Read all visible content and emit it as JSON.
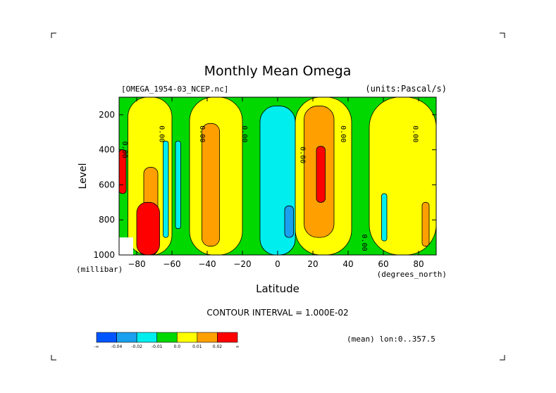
{
  "chart_data": {
    "type": "heatmap",
    "title": "Monthly Mean Omega",
    "file_label": "[OMEGA_1954-03_NCEP.nc]",
    "units_label": "(units:Pascal/s)",
    "xlabel": "Latitude",
    "x_unit_label": "(degrees_north)",
    "ylabel": "Level",
    "y_unit_label": "(millibar)",
    "xlim": [
      -90,
      90
    ],
    "ylim": [
      1000,
      100
    ],
    "x_ticks": [
      -80,
      -60,
      -40,
      -20,
      0,
      20,
      40,
      60,
      80
    ],
    "y_ticks": [
      200,
      400,
      600,
      800,
      1000
    ],
    "contour_interval_label": "CONTOUR INTERVAL = 1.000E-02",
    "mean_label": "(mean) lon:0..357.5",
    "contour_labels": [
      {
        "text": "0.00",
        "x": -88,
        "y": 400
      },
      {
        "text": "0.00",
        "x": -67,
        "y": 310
      },
      {
        "text": "0.00",
        "x": -44,
        "y": 310
      },
      {
        "text": "0.00",
        "x": -20,
        "y": 310
      },
      {
        "text": "0.00",
        "x": 13,
        "y": 430
      },
      {
        "text": "0.00",
        "x": 36,
        "y": 310
      },
      {
        "text": "0.00",
        "x": 48,
        "y": 930
      },
      {
        "text": "0.00",
        "x": 77,
        "y": 310
      }
    ],
    "colorbar": {
      "colors": [
        "#0055ff",
        "#1aa0ee",
        "#00eeee",
        "#00d800",
        "#ffff00",
        "#ffa000",
        "#ff0000"
      ],
      "labels": [
        "-∞",
        "-0.04",
        "-0.02",
        "-0.01",
        "0.0",
        "0.01",
        "0.02",
        "∞"
      ]
    },
    "fields": {
      "baseline": "green",
      "bands": [
        {
          "name": "yellow-band-south",
          "color": "#ffff00",
          "lat_range": [
            -85,
            -60
          ],
          "level_range": [
            1000,
            100
          ]
        },
        {
          "name": "yellow-band-midsouth",
          "color": "#ffff00",
          "lat_range": [
            -50,
            -20
          ],
          "level_range": [
            1000,
            100
          ]
        },
        {
          "name": "cyan-tropics",
          "color": "#00eeee",
          "lat_range": [
            -10,
            10
          ],
          "level_range": [
            1000,
            150
          ]
        },
        {
          "name": "yellow-band-north",
          "color": "#ffff00",
          "lat_range": [
            10,
            42
          ],
          "level_range": [
            1000,
            100
          ]
        },
        {
          "name": "yellow-band-high",
          "color": "#ffff00",
          "lat_range": [
            52,
            90
          ],
          "level_range": [
            1000,
            100
          ]
        }
      ],
      "cores": [
        {
          "name": "orange-core-ne",
          "color": "#ffa000",
          "lat_range": [
            15,
            32
          ],
          "level_range": [
            900,
            150
          ]
        },
        {
          "name": "red-core-ne",
          "color": "#ff0000",
          "lat_range": [
            22,
            27
          ],
          "level_range": [
            700,
            380
          ]
        },
        {
          "name": "orange-core-midsouth",
          "color": "#ffa000",
          "lat_range": [
            -43,
            -33
          ],
          "level_range": [
            950,
            250
          ]
        },
        {
          "name": "orange-core-south",
          "color": "#ffa000",
          "lat_range": [
            -76,
            -68
          ],
          "level_range": [
            1000,
            500
          ]
        },
        {
          "name": "red-core-south",
          "color": "#ff0000",
          "lat_range": [
            -80,
            -67
          ],
          "level_range": [
            1000,
            700
          ]
        },
        {
          "name": "red-core-pole",
          "color": "#ff0000",
          "lat_range": [
            -90,
            -86
          ],
          "level_range": [
            650,
            400
          ]
        },
        {
          "name": "blue-core-tropics",
          "color": "#1aa0ee",
          "lat_range": [
            4,
            9
          ],
          "level_range": [
            900,
            720
          ]
        },
        {
          "name": "cyan-strip-south",
          "color": "#00eeee",
          "lat_range": [
            -65,
            -62
          ],
          "level_range": [
            900,
            350
          ]
        },
        {
          "name": "cyan-strip-south2",
          "color": "#00eeee",
          "lat_range": [
            -58,
            -55
          ],
          "level_range": [
            850,
            350
          ]
        },
        {
          "name": "cyan-strip-north",
          "color": "#00eeee",
          "lat_range": [
            59,
            62
          ],
          "level_range": [
            920,
            650
          ]
        },
        {
          "name": "orange-strip-north",
          "color": "#ffa000",
          "lat_range": [
            82,
            86
          ],
          "level_range": [
            950,
            700
          ]
        }
      ]
    }
  }
}
